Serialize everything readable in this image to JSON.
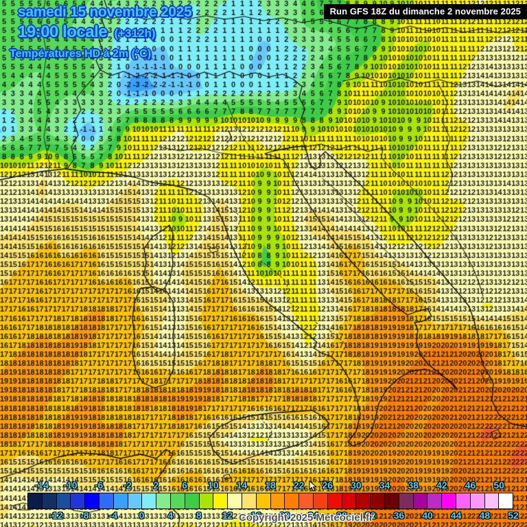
{
  "header": {
    "date_line": "samedi 15 novembre 2025",
    "time_line": "19:00 locale",
    "offset_label": "(+312h)",
    "variable_label": "Températures HD à 2m (°C)",
    "run_info": "Run GFS 18Z du dimanche 2 novembre 2025",
    "text_color": "#3fc8ff",
    "outline_color": "#0a3bd0"
  },
  "footer": {
    "copyright": "Copyright 2025 Meteociel.fr"
  },
  "colorbar": {
    "unit": "°C",
    "start_value": -16,
    "step": 2,
    "label_color": "#49d6ff",
    "top_labels": [
      "-14",
      "-10",
      "-6",
      "-2",
      "2",
      "6",
      "10",
      "14",
      "18",
      "22",
      "26",
      "30",
      "34",
      "38",
      "42",
      "46",
      "50"
    ],
    "bottom_labels": [
      "-12",
      "-8",
      "-4",
      "0",
      "4",
      "8",
      "12",
      "16",
      "20",
      "24",
      "28",
      "32",
      "36",
      "40",
      "44",
      "48",
      "52"
    ],
    "cells": [
      {
        "t": -16,
        "color": "#0a1c4a"
      },
      {
        "t": -14,
        "color": "#123064"
      },
      {
        "t": -12,
        "color": "#1b4f9e"
      },
      {
        "t": -10,
        "color": "#1f36d8"
      },
      {
        "t": -8,
        "color": "#0202fc"
      },
      {
        "t": -6,
        "color": "#2e6bfc"
      },
      {
        "t": -4,
        "color": "#38a1fd"
      },
      {
        "t": -2,
        "color": "#66c8ff"
      },
      {
        "t": 0,
        "color": "#7deef8"
      },
      {
        "t": 2,
        "color": "#83ec8e"
      },
      {
        "t": 4,
        "color": "#54da58"
      },
      {
        "t": 6,
        "color": "#3ccc48"
      },
      {
        "t": 8,
        "color": "#a8e404"
      },
      {
        "t": 10,
        "color": "#fcf405"
      },
      {
        "t": 12,
        "color": "#fdfcae"
      },
      {
        "t": 14,
        "color": "#fce46e"
      },
      {
        "t": 16,
        "color": "#fcc404"
      },
      {
        "t": 18,
        "color": "#fd9b0c"
      },
      {
        "t": 20,
        "color": "#fd7e00"
      },
      {
        "t": 22,
        "color": "#fb5c2c"
      },
      {
        "t": 24,
        "color": "#f93e14"
      },
      {
        "t": 26,
        "color": "#ee0d06"
      },
      {
        "t": 28,
        "color": "#d80309"
      },
      {
        "t": 30,
        "color": "#b20000"
      },
      {
        "t": 32,
        "color": "#8c0000"
      },
      {
        "t": 34,
        "color": "#6c0000"
      },
      {
        "t": 36,
        "color": "#7c2a60"
      },
      {
        "t": 38,
        "color": "#a5059c"
      },
      {
        "t": 40,
        "color": "#bb2cc4"
      },
      {
        "t": 42,
        "color": "#fb03f3"
      },
      {
        "t": 44,
        "color": "#fd63fb"
      },
      {
        "t": 46,
        "color": "#fc96fb"
      },
      {
        "t": 48,
        "color": "#fdc2fc"
      },
      {
        "t": 50,
        "color": "#ffffff"
      }
    ]
  },
  "map": {
    "number_color": "#1c1c1c",
    "coast_color": "#000000",
    "grid_dx": 12.85,
    "grid_dy": 13.1,
    "control_grid": {
      "spacing": 64,
      "temps": [
        [
          5,
          5,
          4,
          4,
          3,
          2,
          3,
          5,
          8,
          10,
          10,
          11,
          12
        ],
        [
          4,
          5,
          4,
          1,
          0,
          1,
          0,
          2,
          5,
          9,
          10,
          12,
          12
        ],
        [
          4,
          4,
          4,
          -3,
          -1,
          0,
          1,
          4,
          10,
          10,
          11,
          13,
          13
        ],
        [
          1,
          5,
          -2,
          10,
          12,
          13,
          13,
          10,
          10,
          10,
          11,
          13,
          13
        ],
        [
          12,
          13,
          9,
          14,
          13,
          12,
          10,
          14,
          12,
          10,
          11,
          12,
          13
        ],
        [
          14,
          15,
          15,
          15,
          9,
          16,
          8,
          15,
          13,
          10,
          12,
          13,
          12
        ],
        [
          15,
          16,
          17,
          16,
          13,
          17,
          8,
          10,
          17,
          14,
          12,
          13,
          14
        ],
        [
          16,
          17,
          18,
          17,
          12,
          17,
          15,
          10,
          16,
          18,
          14,
          12,
          14
        ],
        [
          17,
          18,
          18,
          17,
          13,
          18,
          18,
          12,
          18,
          19,
          20,
          20,
          15
        ],
        [
          18,
          18,
          18,
          18,
          18,
          18,
          18,
          18,
          16,
          20,
          20,
          21,
          21
        ],
        [
          18,
          18,
          18,
          17,
          17,
          13,
          12,
          14,
          19,
          20,
          20,
          21,
          21
        ],
        [
          15,
          14,
          14,
          15,
          16,
          17,
          17,
          17,
          18,
          20,
          20,
          21,
          21
        ],
        [
          13,
          12,
          12,
          13,
          12,
          11,
          12,
          14,
          19,
          20,
          21,
          21,
          21
        ]
      ]
    }
  }
}
